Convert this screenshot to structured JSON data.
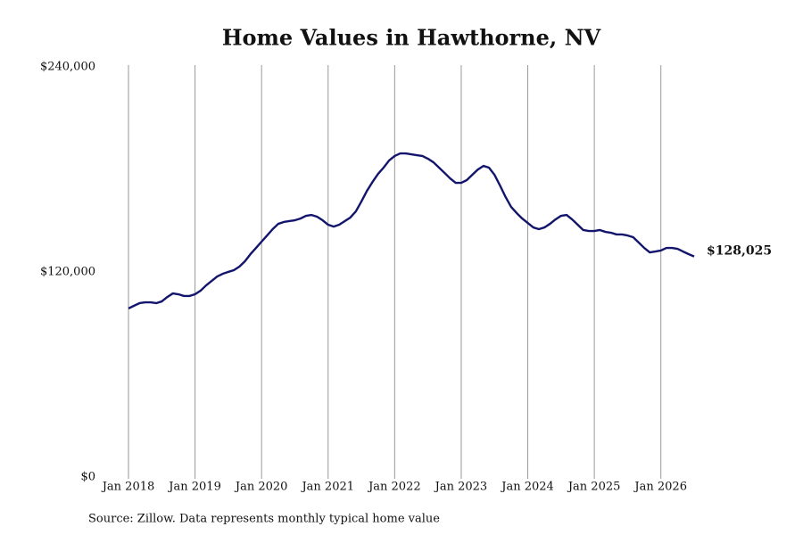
{
  "chart_data": {
    "type": "line",
    "title": "Home Values in Hawthorne, NV",
    "source": "Source: Zillow. Data represents monthly typical home value",
    "color": "#12156b",
    "grid": true,
    "x": [
      "2018-01",
      "2018-02",
      "2018-03",
      "2018-04",
      "2018-05",
      "2018-06",
      "2018-07",
      "2018-08",
      "2018-09",
      "2018-10",
      "2018-11",
      "2018-12",
      "2019-01",
      "2019-02",
      "2019-03",
      "2019-04",
      "2019-05",
      "2019-06",
      "2019-07",
      "2019-08",
      "2019-09",
      "2019-10",
      "2019-11",
      "2019-12",
      "2020-01",
      "2020-02",
      "2020-03",
      "2020-04",
      "2020-05",
      "2020-06",
      "2020-07",
      "2020-08",
      "2020-09",
      "2020-10",
      "2020-11",
      "2020-12",
      "2021-01",
      "2021-02",
      "2021-03",
      "2021-04",
      "2021-05",
      "2021-06",
      "2021-07",
      "2021-08",
      "2021-09",
      "2021-10",
      "2021-11",
      "2021-12",
      "2022-01",
      "2022-02",
      "2022-03",
      "2022-04",
      "2022-05",
      "2022-06",
      "2022-07",
      "2022-08",
      "2022-09",
      "2022-10",
      "2022-11",
      "2022-12",
      "2023-01",
      "2023-02",
      "2023-03",
      "2023-04",
      "2023-05",
      "2023-06",
      "2023-07",
      "2023-08",
      "2023-09",
      "2023-10",
      "2023-11",
      "2023-12",
      "2024-01",
      "2024-02",
      "2024-03",
      "2024-04",
      "2024-05",
      "2024-06",
      "2024-07",
      "2024-08",
      "2024-09",
      "2024-10",
      "2024-11",
      "2024-12",
      "2025-01",
      "2025-02",
      "2025-03",
      "2025-04",
      "2025-05",
      "2025-06",
      "2025-07",
      "2025-08",
      "2025-09",
      "2025-10",
      "2025-11",
      "2025-12",
      "2026-01",
      "2026-02",
      "2026-03",
      "2026-04",
      "2026-05",
      "2026-06",
      "2026-07"
    ],
    "values": [
      97600,
      99200,
      100700,
      101200,
      101200,
      100700,
      101700,
      104300,
      106400,
      105900,
      104900,
      104900,
      105900,
      108000,
      111100,
      113700,
      116300,
      117900,
      119000,
      120000,
      122100,
      125200,
      129400,
      133000,
      136700,
      140300,
      144000,
      147100,
      148200,
      148700,
      149200,
      150200,
      151800,
      152300,
      151300,
      149200,
      146600,
      145500,
      146600,
      148700,
      150800,
      154400,
      160200,
      166400,
      171600,
      176300,
      180000,
      184200,
      186800,
      188300,
      188300,
      187800,
      187300,
      186800,
      185200,
      183100,
      180000,
      176900,
      173700,
      171100,
      171100,
      172700,
      175800,
      178900,
      181000,
      180000,
      175800,
      169500,
      162800,
      157000,
      153400,
      150200,
      147600,
      145000,
      144000,
      145000,
      147100,
      149700,
      151800,
      152300,
      149700,
      146600,
      143500,
      142900,
      142900,
      143500,
      142400,
      141900,
      140900,
      140900,
      140300,
      139300,
      136200,
      133000,
      130400,
      130900,
      131500,
      133000,
      133000,
      132500,
      130900,
      129400,
      128025
    ],
    "value_labels": [
      null,
      null,
      null,
      null,
      null,
      null,
      null,
      null,
      null,
      null,
      null,
      null,
      null,
      null,
      null,
      null,
      null,
      null,
      null,
      null,
      null,
      null,
      null,
      null,
      null,
      null,
      null,
      null,
      null,
      null,
      null,
      null,
      null,
      null,
      null,
      null,
      null,
      null,
      null,
      null,
      null,
      null,
      null,
      null,
      null,
      null,
      null,
      null,
      null,
      null,
      null,
      null,
      null,
      null,
      null,
      null,
      null,
      null,
      null,
      null,
      null,
      null,
      null,
      null,
      null,
      null,
      null,
      null,
      null,
      null,
      null,
      null,
      null,
      null,
      null,
      null,
      null,
      null,
      null,
      null,
      null,
      null,
      null,
      null,
      null,
      null,
      null,
      null,
      null,
      null,
      null,
      null,
      null,
      null,
      null,
      null,
      null,
      null,
      null,
      null,
      null,
      null,
      "$128,025"
    ],
    "ylim": [
      0,
      240000
    ],
    "yticks": [
      {
        "value": 0,
        "label": "$0"
      },
      {
        "value": 120000,
        "label": "$120,000"
      },
      {
        "value": 240000,
        "label": "$240,000"
      }
    ],
    "xticks": [
      {
        "value": "2018-01",
        "label": "Jan 2018"
      },
      {
        "value": "2019-01",
        "label": "Jan 2019"
      },
      {
        "value": "2020-01",
        "label": "Jan 2020"
      },
      {
        "value": "2021-01",
        "label": "Jan 2021"
      },
      {
        "value": "2022-01",
        "label": "Jan 2022"
      },
      {
        "value": "2023-01",
        "label": "Jan 2023"
      },
      {
        "value": "2024-01",
        "label": "Jan 2024"
      },
      {
        "value": "2025-01",
        "label": "Jan 2025"
      },
      {
        "value": "2026-01",
        "label": "Jan 2026"
      }
    ]
  }
}
